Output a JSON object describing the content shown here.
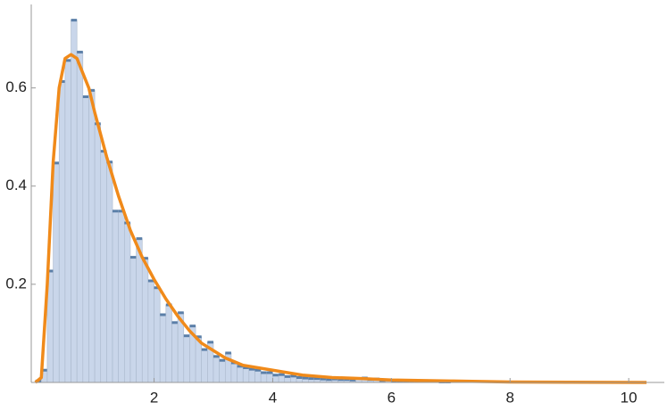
{
  "chart_data": {
    "type": "histogram",
    "bins": [
      0,
      0.1,
      0.2,
      0.3,
      0.4,
      0.5,
      0.6,
      0.7,
      0.8,
      0.9,
      1.0,
      1.1,
      1.2,
      1.3,
      1.4,
      1.5,
      1.6,
      1.7,
      1.8,
      1.9,
      2.0,
      2.1,
      2.2,
      2.3,
      2.4,
      2.5,
      2.6,
      2.7,
      2.8,
      2.9,
      3.0,
      3.1,
      3.2,
      3.3,
      3.4,
      3.5,
      3.6,
      3.7,
      3.8,
      3.9,
      4.0,
      4.1,
      4.2,
      4.3,
      4.4,
      4.5,
      4.6,
      4.7,
      4.8,
      4.9,
      5.0,
      5.1,
      5.2,
      5.3,
      5.4,
      5.5,
      5.6,
      5.7,
      5.8,
      5.9,
      6.0,
      6.1,
      6.2,
      6.3,
      6.4,
      6.5,
      6.6,
      6.7,
      6.8,
      6.9,
      7.0
    ],
    "values": [
      0.003,
      0.025,
      0.227,
      0.447,
      0.613,
      0.656,
      0.738,
      0.673,
      0.582,
      0.595,
      0.527,
      0.471,
      0.449,
      0.349,
      0.349,
      0.325,
      0.255,
      0.293,
      0.253,
      0.207,
      0.193,
      0.138,
      0.158,
      0.122,
      0.142,
      0.095,
      0.115,
      0.093,
      0.067,
      0.082,
      0.053,
      0.045,
      0.06,
      0.04,
      0.033,
      0.03,
      0.027,
      0.025,
      0.02,
      0.02,
      0.015,
      0.016,
      0.012,
      0.013,
      0.01,
      0.009,
      0.008,
      0.008,
      0.007,
      0.006,
      0.007,
      0.006,
      0.006,
      0.005,
      0.008,
      0.009,
      0.006,
      0.007,
      0.004,
      0.005,
      0.003,
      0.003,
      0.003,
      0.002,
      0.003,
      0.002,
      0.002,
      0.002,
      0.001,
      0.001
    ],
    "color": "#c9d6ea",
    "edge_color": "#5b7fa8",
    "density": {
      "color": "#f08a1a",
      "x": [
        0,
        0.1,
        0.2,
        0.3,
        0.4,
        0.5,
        0.6,
        0.7,
        0.8,
        0.9,
        1.0,
        1.2,
        1.4,
        1.6,
        1.8,
        2.0,
        2.2,
        2.4,
        2.6,
        2.8,
        3.0,
        3.2,
        3.5,
        4.0,
        4.5,
        5.0,
        5.5,
        6.0,
        7.0,
        8.0,
        9.0,
        10.3
      ],
      "values": [
        0,
        0.01,
        0.2,
        0.45,
        0.6,
        0.66,
        0.668,
        0.66,
        0.63,
        0.6,
        0.55,
        0.46,
        0.38,
        0.31,
        0.255,
        0.21,
        0.17,
        0.135,
        0.105,
        0.08,
        0.065,
        0.05,
        0.035,
        0.025,
        0.015,
        0.01,
        0.008,
        0.005,
        0.003,
        0.001,
        0.0005,
        0
      ]
    },
    "xlim": [
      -0.07,
      10.6
    ],
    "ylim": [
      0,
      0.77
    ],
    "xticks": [
      2,
      4,
      6,
      8,
      10
    ],
    "yticks": [
      0.2,
      0.4,
      0.6
    ]
  }
}
